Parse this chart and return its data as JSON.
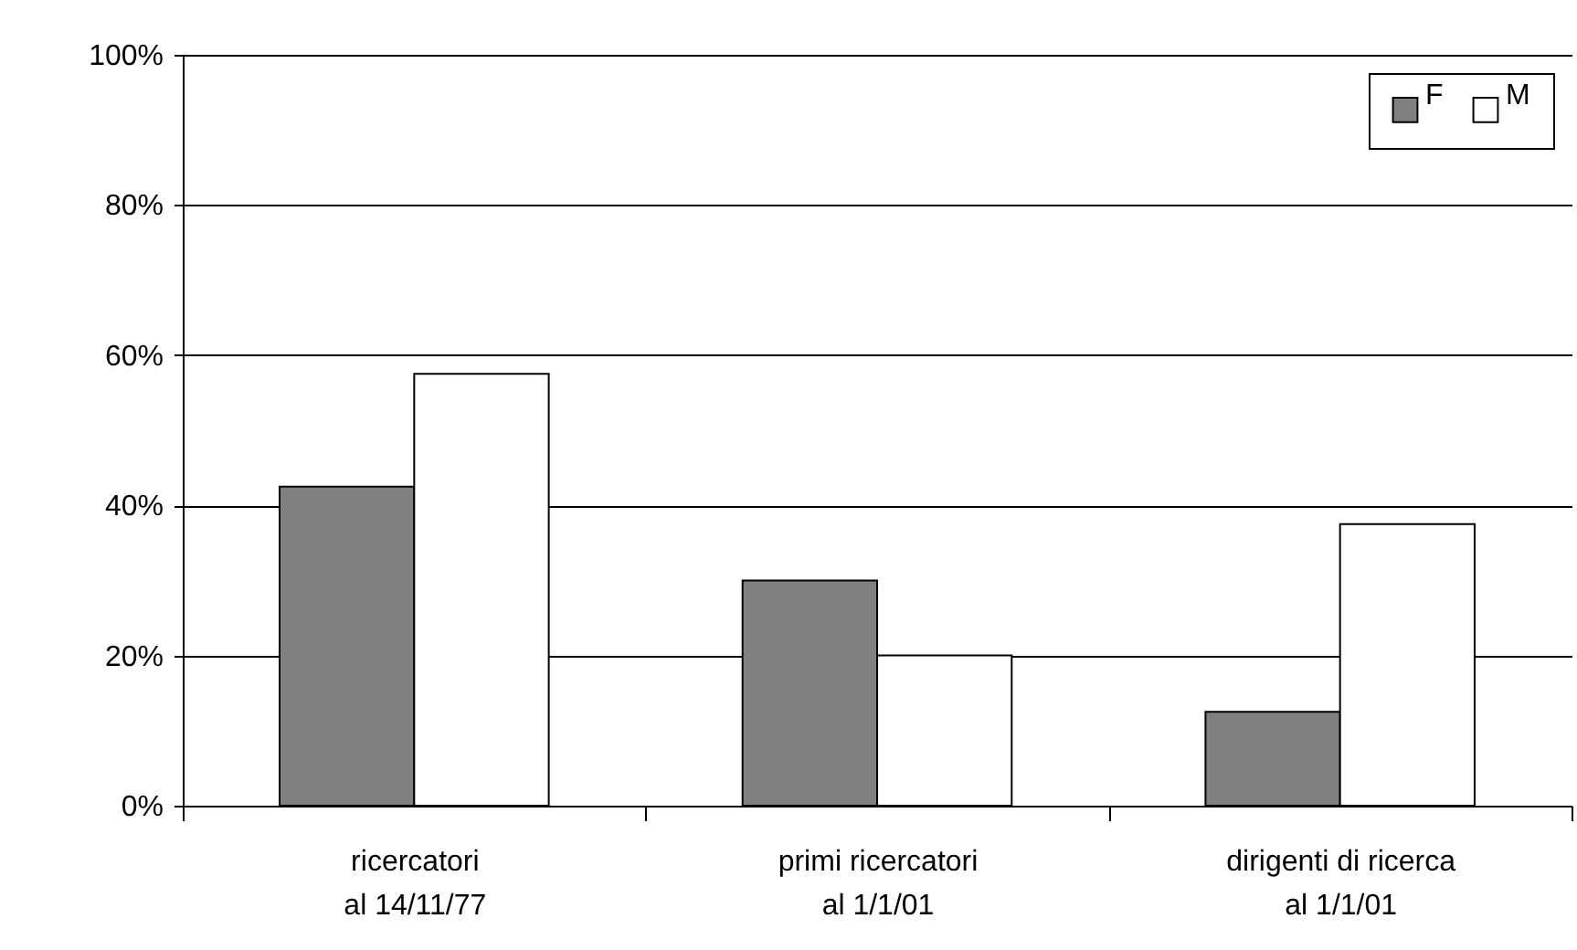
{
  "chart_data": {
    "type": "bar",
    "categories": [
      "ricercatori\nal 14/11/77",
      "primi ricercatori\nal 1/1/01",
      "dirigenti di ricerca\nal 1/1/01"
    ],
    "series": [
      {
        "name": "F",
        "color": "#808080",
        "values": [
          42.5,
          30,
          12.5
        ]
      },
      {
        "name": "M",
        "color": "#ffffff",
        "values": [
          57.5,
          20,
          37.5
        ]
      }
    ],
    "ylim": [
      0,
      100
    ],
    "yticks": [
      {
        "value": 0,
        "label": "0%"
      },
      {
        "value": 20,
        "label": "20%"
      },
      {
        "value": 40,
        "label": "40%"
      },
      {
        "value": 60,
        "label": "60%"
      },
      {
        "value": 80,
        "label": "80%"
      },
      {
        "value": 100,
        "label": "100%"
      }
    ],
    "grid": "y",
    "legend": "top right"
  }
}
